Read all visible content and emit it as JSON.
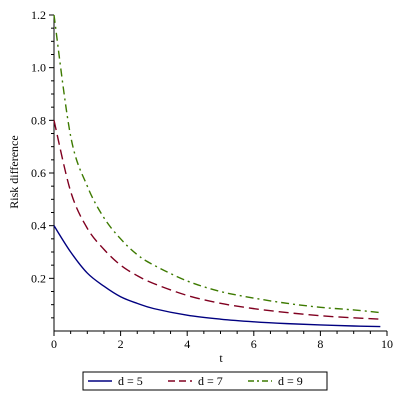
{
  "chart_data": {
    "type": "line",
    "title": "",
    "xlabel": "t",
    "ylabel": "Risk difference",
    "xlim": [
      0,
      10
    ],
    "ylim": [
      0,
      1.2
    ],
    "grid": false,
    "legend_position": "bottom",
    "x_ticks": [
      "0",
      "2",
      "4",
      "6",
      "8",
      "10"
    ],
    "y_ticks": [
      "0.2",
      "0.4",
      "0.6",
      "0.8",
      "1.0",
      "1.2"
    ],
    "x": [
      0,
      0.5,
      1,
      1.5,
      2,
      2.5,
      3,
      4,
      5,
      6,
      7,
      8,
      9,
      9.8
    ],
    "series": [
      {
        "name": "d = 5",
        "color": "#000080",
        "dash": "solid",
        "values": [
          0.4,
          0.3,
          0.22,
          0.17,
          0.13,
          0.105,
          0.085,
          0.06,
          0.045,
          0.035,
          0.028,
          0.023,
          0.019,
          0.017
        ]
      },
      {
        "name": "d = 7",
        "color": "#800020",
        "dash": "dash",
        "values": [
          0.8,
          0.53,
          0.39,
          0.31,
          0.25,
          0.21,
          0.18,
          0.135,
          0.105,
          0.085,
          0.07,
          0.058,
          0.05,
          0.045
        ]
      },
      {
        "name": "d = 9",
        "color": "#3d7a00",
        "dash": "dashdot",
        "values": [
          1.2,
          0.74,
          0.55,
          0.43,
          0.35,
          0.29,
          0.25,
          0.19,
          0.15,
          0.125,
          0.105,
          0.09,
          0.08,
          0.07
        ]
      }
    ]
  }
}
